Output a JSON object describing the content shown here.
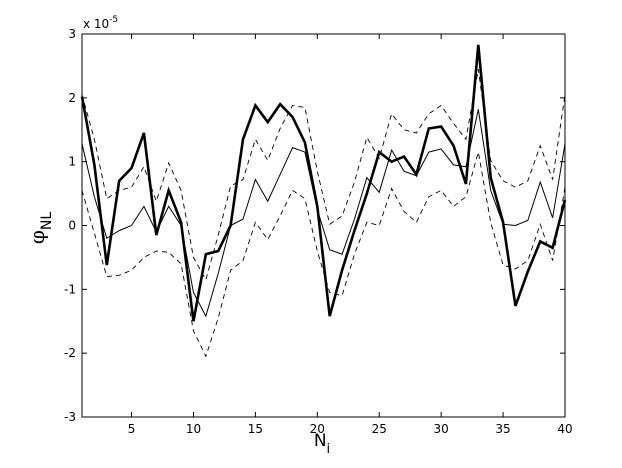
{
  "chart_data": {
    "type": "line",
    "title": "",
    "xlabel": {
      "main": "N",
      "sub": "i"
    },
    "ylabel": {
      "main": "φ",
      "sub": "NL"
    },
    "y_multiplier": {
      "base": "x 10",
      "exponent": "-5"
    },
    "xlim": [
      1,
      40
    ],
    "ylim": [
      -3,
      3
    ],
    "xticks": [
      5,
      10,
      15,
      20,
      25,
      30,
      35,
      40
    ],
    "yticks": [
      -3,
      -2,
      -1,
      0,
      1,
      2,
      3
    ],
    "grid": false,
    "legend": "none",
    "x": [
      1,
      2,
      3,
      4,
      5,
      6,
      7,
      8,
      9,
      10,
      11,
      12,
      13,
      14,
      15,
      16,
      17,
      18,
      19,
      20,
      21,
      22,
      23,
      24,
      25,
      26,
      27,
      28,
      29,
      30,
      31,
      32,
      33,
      34,
      35,
      36,
      37,
      38,
      39,
      40
    ],
    "series": [
      {
        "style": "thick",
        "values": [
          2.02,
          0.95,
          -0.62,
          0.7,
          0.9,
          1.45,
          -0.15,
          0.55,
          0.05,
          -1.5,
          -0.45,
          -0.4,
          0.0,
          1.35,
          1.88,
          1.62,
          1.9,
          1.7,
          1.3,
          0.3,
          -1.42,
          -0.7,
          -0.08,
          0.5,
          1.15,
          1.0,
          1.08,
          0.8,
          1.52,
          1.55,
          1.25,
          0.65,
          2.83,
          0.75,
          0.05,
          -1.26,
          -0.72,
          -0.25,
          -0.35,
          0.4
        ]
      },
      {
        "style": "thin",
        "values": [
          1.28,
          0.45,
          -0.2,
          -0.08,
          0.0,
          0.3,
          -0.1,
          0.3,
          0.0,
          -1.05,
          -1.42,
          -0.75,
          0.0,
          0.1,
          0.72,
          0.38,
          0.8,
          1.22,
          1.15,
          0.25,
          -0.38,
          -0.45,
          0.1,
          0.75,
          0.52,
          1.18,
          0.85,
          0.78,
          1.15,
          1.2,
          0.95,
          0.92,
          1.82,
          0.55,
          0.02,
          0.0,
          0.08,
          0.68,
          0.12,
          1.28
        ]
      },
      {
        "style": "dashed-upper",
        "values": [
          2.05,
          1.35,
          0.42,
          0.55,
          0.6,
          0.92,
          0.38,
          0.98,
          0.55,
          -0.5,
          -0.85,
          -0.15,
          0.62,
          0.72,
          1.35,
          1.02,
          1.52,
          1.88,
          1.85,
          0.85,
          0.02,
          0.15,
          0.68,
          1.38,
          1.05,
          1.75,
          1.5,
          1.45,
          1.75,
          1.88,
          1.6,
          1.35,
          2.45,
          1.02,
          0.7,
          0.6,
          0.7,
          1.25,
          0.72,
          2.05
        ]
      },
      {
        "style": "dashed-lower",
        "values": [
          0.55,
          -0.12,
          -0.8,
          -0.78,
          -0.7,
          -0.5,
          -0.4,
          -0.42,
          -0.6,
          -1.65,
          -2.05,
          -1.45,
          -0.7,
          -0.55,
          0.05,
          -0.22,
          0.15,
          0.55,
          0.42,
          -0.4,
          -1.05,
          -1.1,
          -0.45,
          0.05,
          0.0,
          0.58,
          0.22,
          0.05,
          0.45,
          0.55,
          0.3,
          0.45,
          1.15,
          0.05,
          -0.62,
          -0.68,
          -0.55,
          0.02,
          -0.55,
          0.6
        ]
      }
    ]
  }
}
